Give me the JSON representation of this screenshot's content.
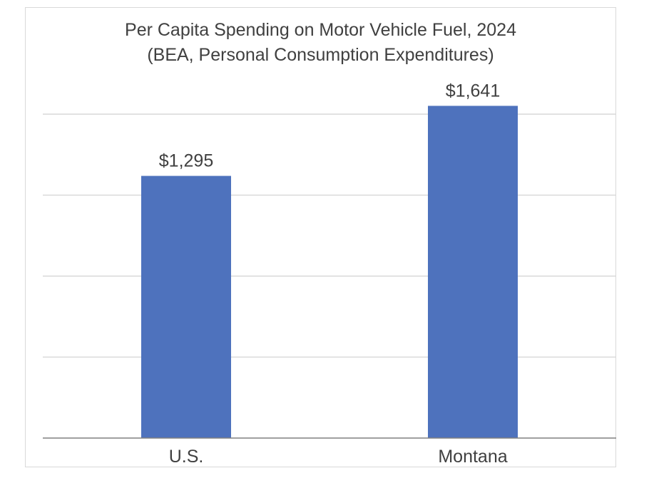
{
  "chart_data": {
    "type": "bar",
    "title": "Per Capita Spending on Motor Vehicle Fuel, 2024",
    "subtitle": "(BEA, Personal Consumption Expenditures)",
    "categories": [
      "U.S.",
      "Montana"
    ],
    "values": [
      1295,
      1641
    ],
    "data_labels": [
      "$1,295",
      "$1,641"
    ],
    "xlabel": "",
    "ylabel": "",
    "ylim": [
      0,
      2000
    ],
    "y_gridlines": [
      0,
      400,
      800,
      1200,
      1600
    ],
    "y_tick_labels_visible": false,
    "grid": true,
    "legend": "none",
    "bar_color": "#4e72bd",
    "grid_color": "#d9d9d9",
    "axis_color": "#808080",
    "text_color": "#404040"
  }
}
